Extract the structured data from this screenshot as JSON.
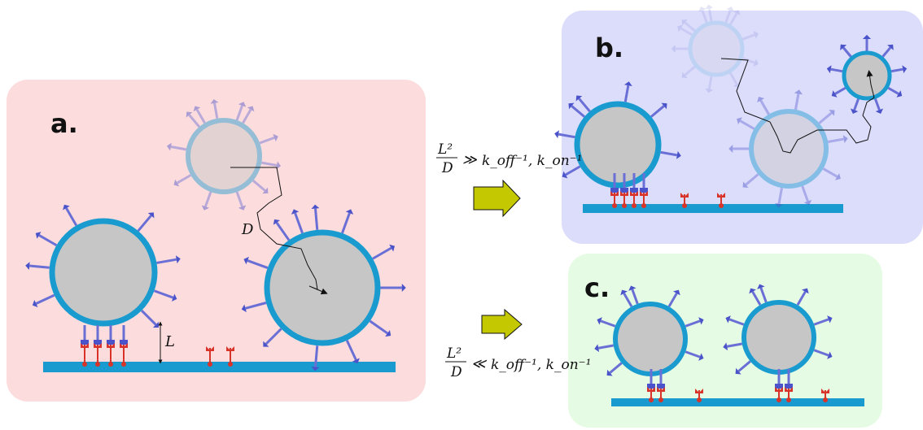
{
  "panels": {
    "a": {
      "label": "a."
    },
    "b": {
      "label": "b."
    },
    "c": {
      "label": "c."
    }
  },
  "annotations": {
    "diffusion_symbol": "D",
    "distance_symbol": "L"
  },
  "conditions": {
    "top": {
      "fraction_num": "L²",
      "fraction_den": "D",
      "relation": "≫",
      "rates": "k_off⁻¹, k_on⁻¹"
    },
    "bottom": {
      "fraction_num": "L²",
      "fraction_den": "D",
      "relation": "≪",
      "rates": "k_off⁻¹, k_on⁻¹"
    }
  },
  "colors": {
    "panel_a_bg": "#fcdcdc",
    "panel_b_bg": "#dcdcfb",
    "panel_c_bg": "#e6fbe3",
    "membrane": "#1a9bcf",
    "particle_fill": "#c6c6c6",
    "receptor": "#d9342a",
    "ligand": "#4a53c9",
    "arrow_fill": "#c3c800"
  }
}
